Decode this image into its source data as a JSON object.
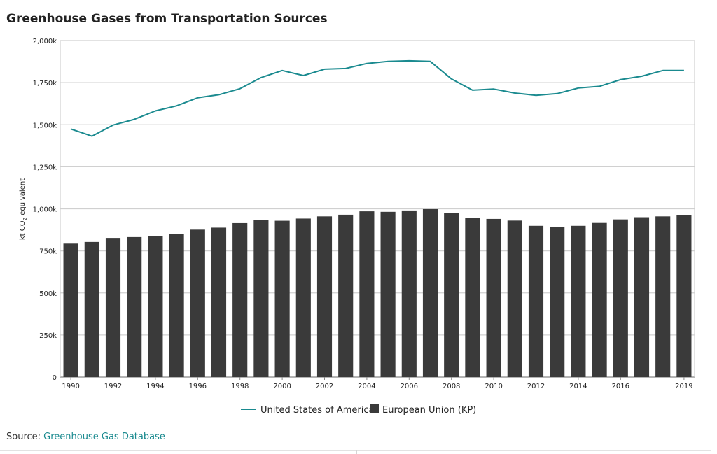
{
  "title": "Greenhouse Gases from Transportation Sources",
  "source": {
    "prefix": "Source:",
    "link_text": "Greenhouse Gas Database"
  },
  "colors": {
    "us_line": "#1a8a8f",
    "eu_bar": "#3a3a3a",
    "grid": "#d0d0d0",
    "text": "#222222"
  },
  "chart_data": {
    "type": "bar+line",
    "ylabel_prefix": "kt CO",
    "ylabel_sub": "2",
    "ylabel_suffix": " equivalent",
    "ylim": [
      0,
      2000
    ],
    "yticks": [
      0,
      250,
      500,
      750,
      1000,
      1250,
      1500,
      1750,
      2000
    ],
    "ytick_labels": [
      "0",
      "250k",
      "500k",
      "750k",
      "1,000k",
      "1,250k",
      "1,500k",
      "1,750k",
      "2,000k"
    ],
    "x": [
      1990,
      1991,
      1992,
      1993,
      1994,
      1995,
      1996,
      1997,
      1998,
      1999,
      2000,
      2001,
      2002,
      2003,
      2004,
      2005,
      2006,
      2007,
      2008,
      2009,
      2010,
      2011,
      2012,
      2013,
      2014,
      2015,
      2016,
      2017,
      2018,
      2019
    ],
    "xtick_labels": [
      "1990",
      "1992",
      "1994",
      "1996",
      "1998",
      "2000",
      "2002",
      "2004",
      "2006",
      "2008",
      "2010",
      "2012",
      "2014",
      "2016",
      "2019"
    ],
    "grid": true,
    "legend": "bottom-center",
    "series": [
      {
        "name": "United States of America",
        "type": "line",
        "values": [
          1475,
          1432,
          1498,
          1532,
          1582,
          1612,
          1660,
          1678,
          1714,
          1780,
          1822,
          1792,
          1830,
          1834,
          1864,
          1876,
          1880,
          1876,
          1772,
          1705,
          1712,
          1688,
          1675,
          1685,
          1718,
          1728,
          1768,
          1788,
          1822,
          1822
        ]
      },
      {
        "name": "European Union (KP)",
        "type": "bar",
        "values": [
          793,
          803,
          827,
          832,
          838,
          851,
          876,
          888,
          915,
          932,
          929,
          942,
          955,
          965,
          985,
          982,
          990,
          998,
          977,
          946,
          940,
          930,
          899,
          894,
          899,
          916,
          937,
          950,
          955,
          961
        ]
      }
    ]
  }
}
